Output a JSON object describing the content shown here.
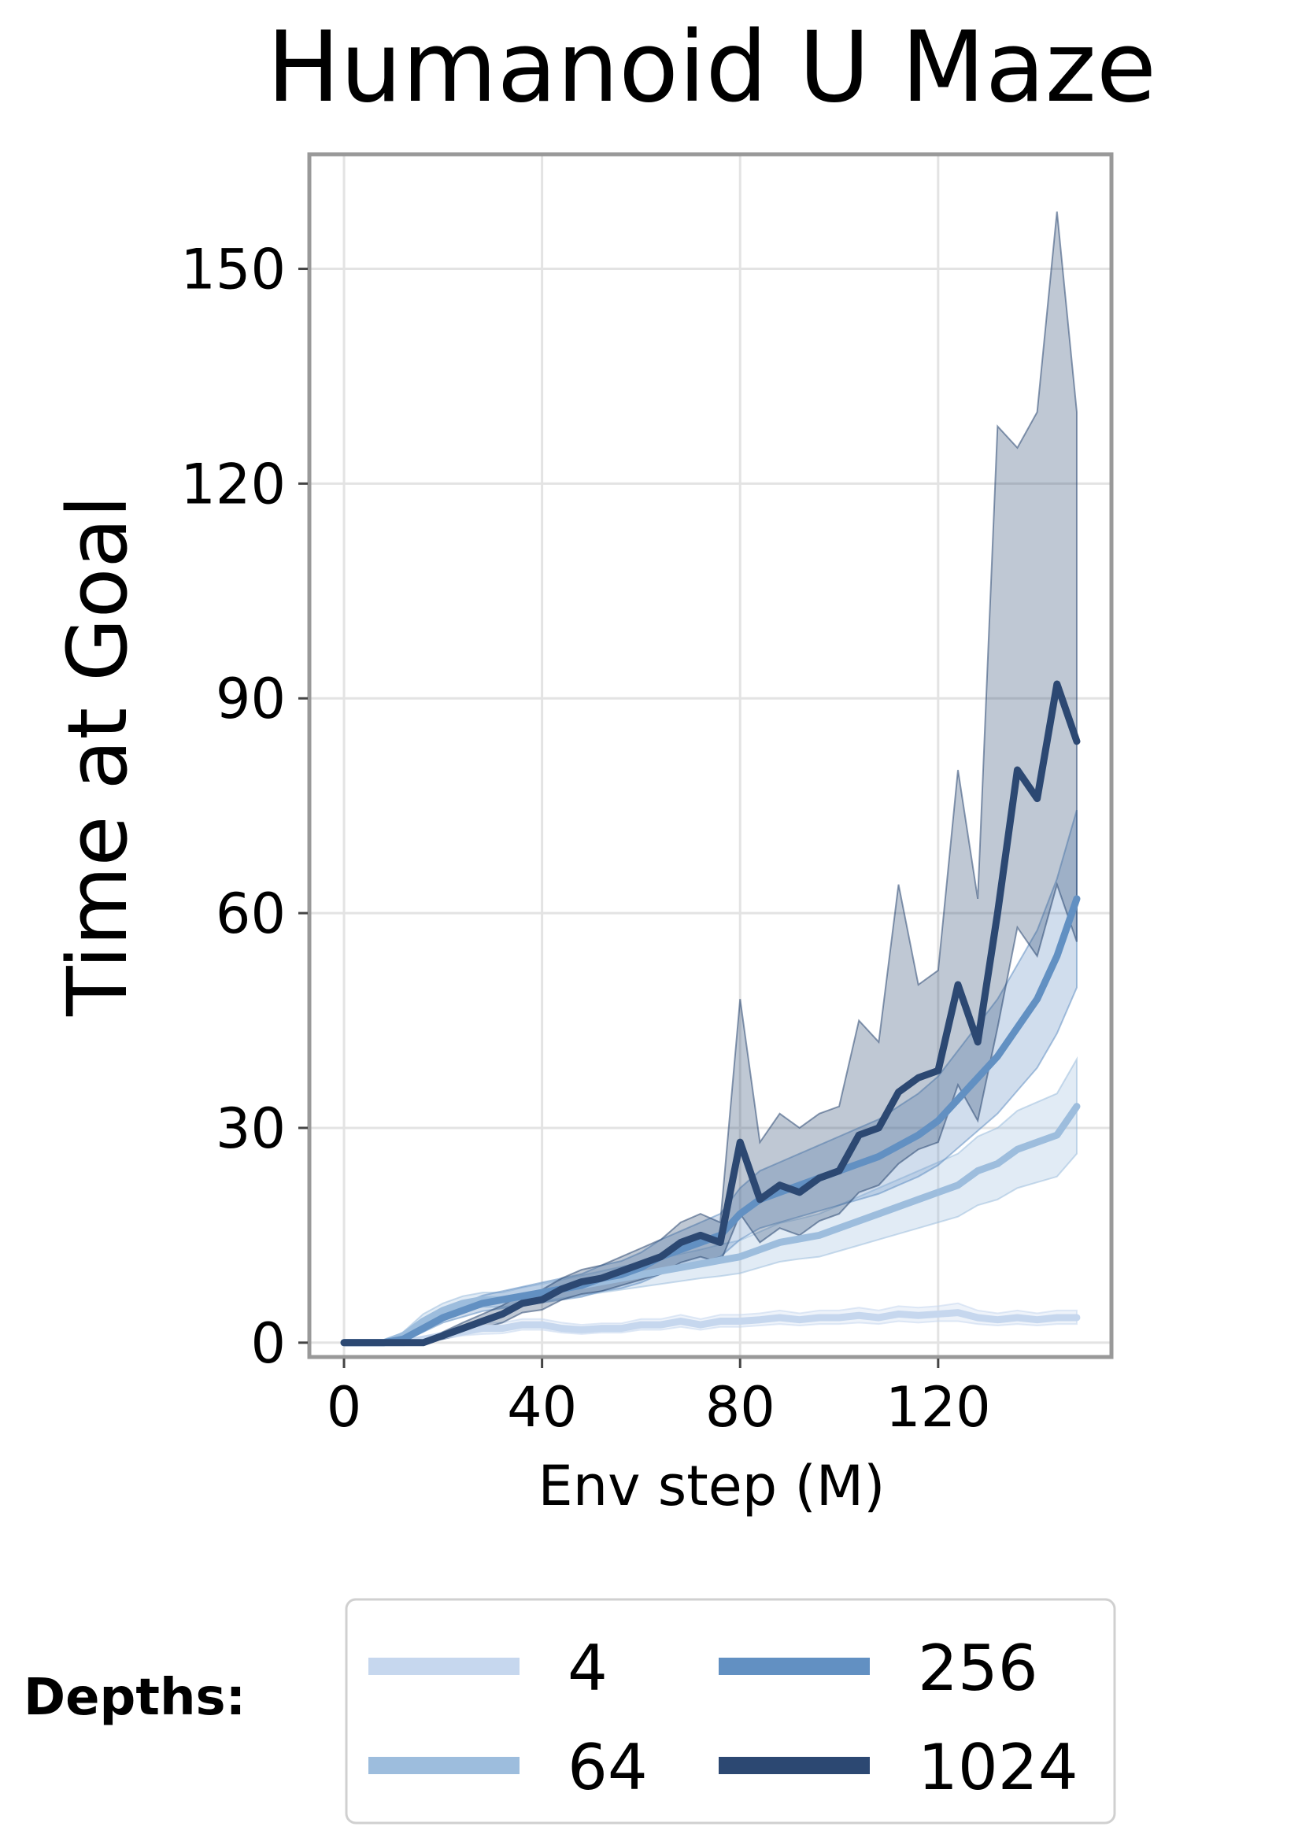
{
  "chart_data": {
    "type": "line",
    "title": "Humanoid U Maze",
    "xlabel": "Env step (M)",
    "ylabel": "Time at Goal",
    "xlim": [
      -7,
      155
    ],
    "ylim": [
      -2,
      166
    ],
    "xticks": [
      0,
      40,
      80,
      120
    ],
    "yticks": [
      0,
      30,
      60,
      90,
      120,
      150
    ],
    "grid": true,
    "legend": {
      "title": "Depths:",
      "placement": "bottom",
      "columns": 2
    },
    "x": [
      0,
      4,
      8,
      12,
      16,
      20,
      24,
      28,
      32,
      36,
      40,
      44,
      48,
      52,
      56,
      60,
      64,
      68,
      72,
      76,
      80,
      84,
      88,
      92,
      96,
      100,
      104,
      108,
      112,
      116,
      120,
      124,
      128,
      132,
      136,
      140,
      144,
      148
    ],
    "series": [
      {
        "name": "4",
        "color": "#c6d7ee",
        "values": [
          0,
          0,
          0,
          0,
          0.5,
          1,
          1.5,
          2,
          2,
          2.5,
          2.5,
          2,
          1.8,
          2,
          2,
          2.5,
          2.5,
          3,
          2.5,
          3,
          3,
          3.2,
          3.5,
          3.2,
          3.5,
          3.5,
          3.8,
          3.5,
          4,
          3.8,
          4,
          4.2,
          3.5,
          3.2,
          3.5,
          3.2,
          3.5,
          3.5
        ],
        "lower": [
          0,
          0,
          0,
          0,
          0.2,
          0.5,
          1,
          1.2,
          1.3,
          1.8,
          1.8,
          1.4,
          1.2,
          1.4,
          1.4,
          1.8,
          1.8,
          2.2,
          1.8,
          2.2,
          2.2,
          2.4,
          2.6,
          2.4,
          2.6,
          2.6,
          2.8,
          2.6,
          3,
          2.8,
          3,
          3,
          2.6,
          2.4,
          2.6,
          2.4,
          2.6,
          2.6
        ],
        "upper": [
          0,
          0,
          0,
          0,
          0.8,
          1.5,
          2,
          2.8,
          2.8,
          3.3,
          3.3,
          2.8,
          2.5,
          2.7,
          2.7,
          3.3,
          3.3,
          3.9,
          3.3,
          3.9,
          3.9,
          4.1,
          4.5,
          4.1,
          4.5,
          4.5,
          4.9,
          4.5,
          5.1,
          4.9,
          5.1,
          5.5,
          4.5,
          4.1,
          4.5,
          4.1,
          4.5,
          4.5
        ]
      },
      {
        "name": "64",
        "color": "#9dbddd",
        "values": [
          0,
          0,
          0,
          1,
          3,
          4.5,
          5.5,
          6,
          6,
          6.5,
          7,
          7.5,
          8,
          8.5,
          9,
          9.5,
          10,
          10.5,
          11,
          11.5,
          12,
          13,
          14,
          14.5,
          15,
          16,
          17,
          18,
          19,
          20,
          21,
          22,
          24,
          25,
          27,
          28,
          29,
          33
        ],
        "lower": [
          0,
          0,
          0,
          0.5,
          2,
          3.5,
          4.5,
          5,
          5,
          5.3,
          5.8,
          6.2,
          6.6,
          7,
          7.4,
          7.8,
          8.2,
          8.6,
          9,
          9.3,
          9.7,
          10.5,
          11.3,
          11.7,
          12,
          12.8,
          13.6,
          14.4,
          15.2,
          16,
          16.8,
          17.6,
          19.2,
          20,
          21.6,
          22.4,
          23.2,
          26.4
        ],
        "upper": [
          0,
          0,
          0,
          1.5,
          4,
          5.5,
          6.5,
          7,
          7,
          7.7,
          8.2,
          8.8,
          9.4,
          10,
          10.6,
          11.2,
          11.8,
          12.4,
          13,
          13.7,
          14.3,
          15.5,
          16.7,
          17.3,
          18,
          19.2,
          20.4,
          21.6,
          22.8,
          24,
          25.2,
          26.4,
          28.8,
          30,
          32.4,
          33.6,
          34.8,
          39.6
        ]
      },
      {
        "name": "256",
        "color": "#6290c2",
        "values": [
          0,
          0,
          0,
          0.5,
          2,
          3.5,
          4.5,
          5.5,
          6,
          6.5,
          7,
          7.5,
          8,
          9,
          9.5,
          10.5,
          12,
          13,
          14,
          15,
          18,
          20,
          21,
          22,
          23,
          24,
          25,
          26,
          27.5,
          29,
          31,
          34,
          37,
          40,
          44,
          48,
          54,
          62
        ],
        "lower": [
          0,
          0,
          0,
          0.2,
          1.5,
          2.8,
          3.6,
          4.4,
          4.8,
          5.2,
          5.6,
          6,
          6.4,
          7.2,
          7.6,
          8.4,
          9.6,
          10.4,
          11.2,
          12,
          14.4,
          16,
          16.8,
          17.6,
          18.4,
          19.2,
          20,
          20.8,
          22,
          23.2,
          24.8,
          27.2,
          29.6,
          32,
          35.2,
          38.4,
          43.2,
          49.6
        ],
        "upper": [
          0,
          0,
          0,
          0.8,
          2.5,
          4.2,
          5.4,
          6.6,
          7.2,
          7.8,
          8.4,
          9,
          9.6,
          10.8,
          11.4,
          12.6,
          14.4,
          15.6,
          16.8,
          18,
          21.6,
          24,
          25.2,
          26.4,
          27.6,
          28.8,
          30,
          31.2,
          33,
          34.8,
          37.2,
          40.8,
          44.4,
          48,
          52.8,
          57.6,
          64.8,
          74.4
        ]
      },
      {
        "name": "1024",
        "color": "#2c4872",
        "values": [
          0,
          0,
          0,
          0,
          0,
          1,
          2,
          3,
          4,
          5.5,
          6,
          7.5,
          8.5,
          9,
          10,
          11,
          12,
          14,
          15,
          14,
          28,
          20,
          22,
          21,
          23,
          24,
          29,
          30,
          35,
          37,
          38,
          50,
          42,
          60,
          80,
          76,
          92,
          84
        ],
        "lower": [
          0,
          0,
          0,
          0,
          0,
          0.5,
          1.2,
          2,
          2.8,
          4.2,
          4.6,
          6,
          6.8,
          7.2,
          8,
          8.8,
          9.6,
          11.2,
          12,
          11.2,
          18,
          14,
          16,
          15,
          17,
          18,
          21,
          22,
          25,
          27,
          28,
          36,
          31,
          44,
          58,
          54,
          64,
          56
        ],
        "upper": [
          0,
          0,
          0,
          0,
          0,
          1.5,
          2.8,
          4,
          5.2,
          6.8,
          7.4,
          9,
          10.2,
          10.8,
          12,
          13.2,
          14.4,
          16.8,
          18,
          16.8,
          48,
          28,
          32,
          30,
          32,
          33,
          45,
          42,
          64,
          50,
          52,
          80,
          62,
          128,
          125,
          130,
          158,
          130
        ]
      }
    ]
  }
}
